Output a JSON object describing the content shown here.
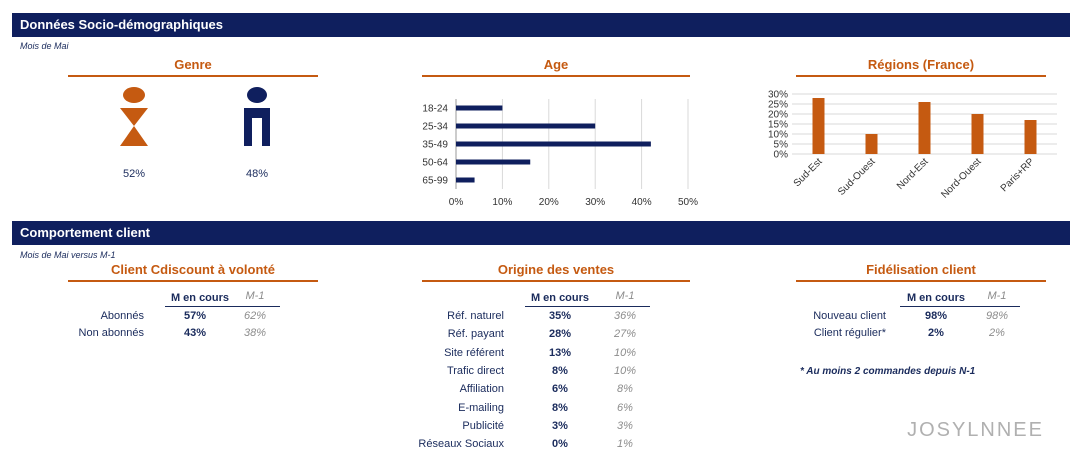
{
  "section1": {
    "title": "Données Socio-démographiques",
    "subtitle": "Mois de Mai"
  },
  "section2": {
    "title": "Comportement client",
    "subtitle": "Mois de Mai versus M-1"
  },
  "genre": {
    "title": "Genre",
    "female_pct": "52%",
    "male_pct": "48%",
    "female_color": "#c55a11",
    "male_color": "#0f1f5e"
  },
  "chart_data": [
    {
      "type": "bar",
      "orientation": "horizontal",
      "title": "Age",
      "categories": [
        "18-24",
        "25-34",
        "35-49",
        "50-64",
        "65-99"
      ],
      "values": [
        10,
        30,
        42,
        16,
        4
      ],
      "xlim": [
        0,
        50
      ],
      "xticks": [
        "0%",
        "10%",
        "20%",
        "30%",
        "40%",
        "50%"
      ],
      "grid": true,
      "color": "#0f1f5e"
    },
    {
      "type": "bar",
      "title": "Régions (France)",
      "categories": [
        "Sud-Est",
        "Sud-Ouest",
        "Nord-Est",
        "Nord-Ouest",
        "Paris+RP"
      ],
      "values": [
        28,
        10,
        26,
        20,
        17
      ],
      "ylim": [
        0,
        30
      ],
      "yticks": [
        "0%",
        "5%",
        "10%",
        "15%",
        "20%",
        "25%",
        "30%"
      ],
      "grid": true,
      "color": "#c55a11"
    }
  ],
  "cdiscount": {
    "title": "Client Cdiscount à volonté",
    "head_cur": "M en cours",
    "head_prev": "M-1",
    "rows": [
      {
        "label": "Abonnés",
        "cur": "57%",
        "prev": "62%"
      },
      {
        "label": "Non abonnés",
        "cur": "43%",
        "prev": "38%"
      }
    ]
  },
  "origine": {
    "title": "Origine des ventes",
    "head_cur": "M en cours",
    "head_prev": "M-1",
    "rows": [
      {
        "label": "Réf. naturel",
        "cur": "35%",
        "prev": "36%"
      },
      {
        "label": "Réf. payant",
        "cur": "28%",
        "prev": "27%"
      },
      {
        "label": "Site référent",
        "cur": "13%",
        "prev": "10%"
      },
      {
        "label": "Trafic direct",
        "cur": "8%",
        "prev": "10%"
      },
      {
        "label": "Affiliation",
        "cur": "6%",
        "prev": "8%"
      },
      {
        "label": "E-mailing",
        "cur": "8%",
        "prev": "6%"
      },
      {
        "label": "Publicité",
        "cur": "3%",
        "prev": "3%"
      },
      {
        "label": "Réseaux Sociaux",
        "cur": "0%",
        "prev": "1%"
      }
    ]
  },
  "fidelisation": {
    "title": "Fidélisation client",
    "head_cur": "M en cours",
    "head_prev": "M-1",
    "rows": [
      {
        "label": "Nouveau client",
        "cur": "98%",
        "prev": "98%"
      },
      {
        "label": "Client régulier*",
        "cur": "2%",
        "prev": "2%"
      }
    ],
    "note": "* Au moins 2 commandes depuis N-1"
  },
  "watermark": "JOSYLNNEE"
}
